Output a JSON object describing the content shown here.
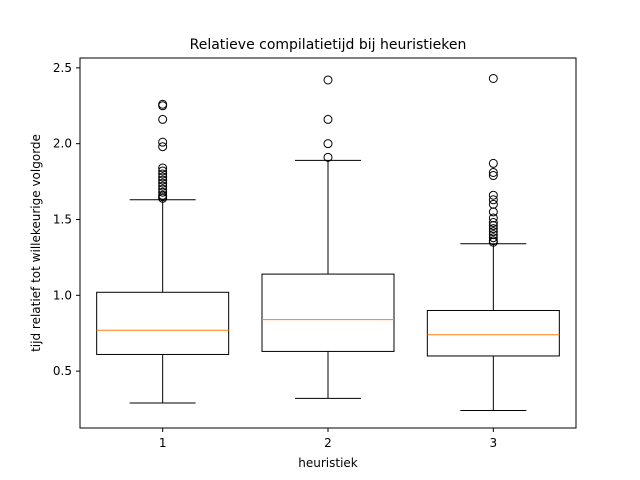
{
  "chart_data": {
    "type": "boxplot",
    "title": "Relatieve compilatietijd bij heuristieken",
    "xlabel": "heuristiek",
    "ylabel": "tijd relatief tot willekeurige volgorde",
    "ylim": [
      0.125,
      2.565
    ],
    "yticks": [
      0.5,
      1.0,
      1.5,
      2.0,
      2.5
    ],
    "ytick_labels": [
      "0.5",
      "1.0",
      "1.5",
      "2.0",
      "2.5"
    ],
    "categories": [
      "1",
      "2",
      "3"
    ],
    "grid": false,
    "boxes": [
      {
        "category": "1",
        "whisker_low": 0.29,
        "q1": 0.61,
        "median": 0.77,
        "q3": 1.02,
        "whisker_high": 1.63,
        "outliers": [
          1.64,
          1.65,
          1.66,
          1.68,
          1.7,
          1.72,
          1.74,
          1.76,
          1.78,
          1.8,
          1.82,
          1.84,
          1.98,
          2.01,
          2.16,
          2.25,
          2.26
        ]
      },
      {
        "category": "2",
        "whisker_low": 0.32,
        "q1": 0.63,
        "median": 0.84,
        "q3": 1.14,
        "whisker_high": 1.89,
        "outliers": [
          1.91,
          2.0,
          2.16,
          2.42
        ]
      },
      {
        "category": "3",
        "whisker_low": 0.24,
        "q1": 0.6,
        "median": 0.74,
        "q3": 0.9,
        "whisker_high": 1.34,
        "outliers": [
          1.35,
          1.36,
          1.38,
          1.4,
          1.42,
          1.44,
          1.46,
          1.48,
          1.51,
          1.55,
          1.6,
          1.63,
          1.66,
          1.79,
          1.81,
          1.87,
          2.43
        ]
      }
    ],
    "colors": {
      "box": "#000000",
      "median": "#ff7f0e",
      "flier": "#000000",
      "background": "#ffffff"
    }
  }
}
